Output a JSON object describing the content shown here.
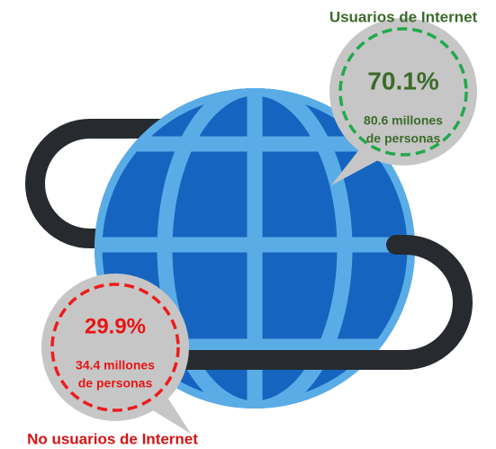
{
  "users": {
    "title": "Usuarios de Internet",
    "percent": "70.1%",
    "detail_line1": "80.6 millones",
    "detail_line2": "de personas"
  },
  "non_users": {
    "title": "No usuarios de Internet",
    "percent": "29.9%",
    "detail_line1": "34.4 millones",
    "detail_line2": "de personas"
  }
}
